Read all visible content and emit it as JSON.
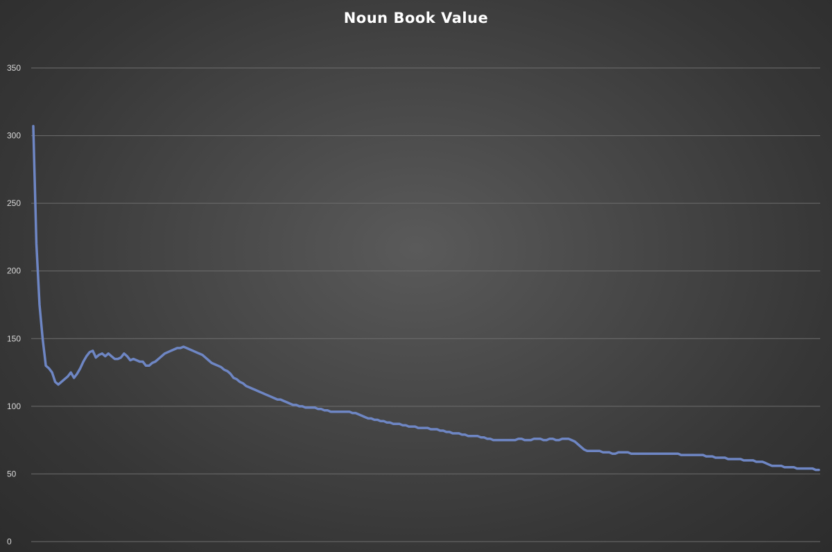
{
  "chart_data": {
    "type": "line",
    "title": "Noun Book Value",
    "xlabel": "",
    "ylabel": "",
    "ylim": [
      0,
      350
    ],
    "yticks": [
      0,
      50,
      100,
      150,
      200,
      250,
      300,
      350
    ],
    "grid": true,
    "legend": "none",
    "colors": {
      "series": "#6e86c4",
      "grid": "#6e6e6e",
      "title": "#ffffff",
      "tick_labels": "#d9d9d9"
    },
    "series": [
      {
        "values": [
          307,
          220,
          175,
          150,
          130,
          128,
          125,
          118,
          116,
          118,
          120,
          122,
          125,
          121,
          124,
          128,
          133,
          137,
          140,
          141,
          136,
          138,
          139,
          137,
          139,
          137,
          135,
          135,
          136,
          139,
          137,
          134,
          135,
          134,
          133,
          133,
          130,
          130,
          132,
          133,
          135,
          137,
          139,
          140,
          141,
          142,
          143,
          143,
          144,
          143,
          142,
          141,
          140,
          139,
          138,
          136,
          134,
          132,
          131,
          130,
          129,
          127,
          126,
          124,
          121,
          120,
          118,
          117,
          115,
          114,
          113,
          112,
          111,
          110,
          109,
          108,
          107,
          106,
          105,
          105,
          104,
          103,
          102,
          101,
          101,
          100,
          100,
          99,
          99,
          99,
          99,
          98,
          98,
          97,
          97,
          96,
          96,
          96,
          96,
          96,
          96,
          96,
          95,
          95,
          94,
          93,
          92,
          91,
          91,
          90,
          90,
          89,
          89,
          88,
          88,
          87,
          87,
          87,
          86,
          86,
          85,
          85,
          85,
          84,
          84,
          84,
          84,
          83,
          83,
          83,
          82,
          82,
          81,
          81,
          80,
          80,
          80,
          79,
          79,
          78,
          78,
          78,
          78,
          77,
          77,
          76,
          76,
          75,
          75,
          75,
          75,
          75,
          75,
          75,
          75,
          76,
          76,
          75,
          75,
          75,
          76,
          76,
          76,
          75,
          75,
          76,
          76,
          75,
          75,
          76,
          76,
          76,
          75,
          74,
          72,
          70,
          68,
          67,
          67,
          67,
          67,
          67,
          66,
          66,
          66,
          65,
          65,
          66,
          66,
          66,
          66,
          65,
          65,
          65,
          65,
          65,
          65,
          65,
          65,
          65,
          65,
          65,
          65,
          65,
          65,
          65,
          65,
          64,
          64,
          64,
          64,
          64,
          64,
          64,
          64,
          63,
          63,
          63,
          62,
          62,
          62,
          62,
          61,
          61,
          61,
          61,
          61,
          60,
          60,
          60,
          60,
          59,
          59,
          59,
          58,
          57,
          56,
          56,
          56,
          56,
          55,
          55,
          55,
          55,
          54,
          54,
          54,
          54,
          54,
          54,
          53,
          53
        ]
      }
    ]
  }
}
